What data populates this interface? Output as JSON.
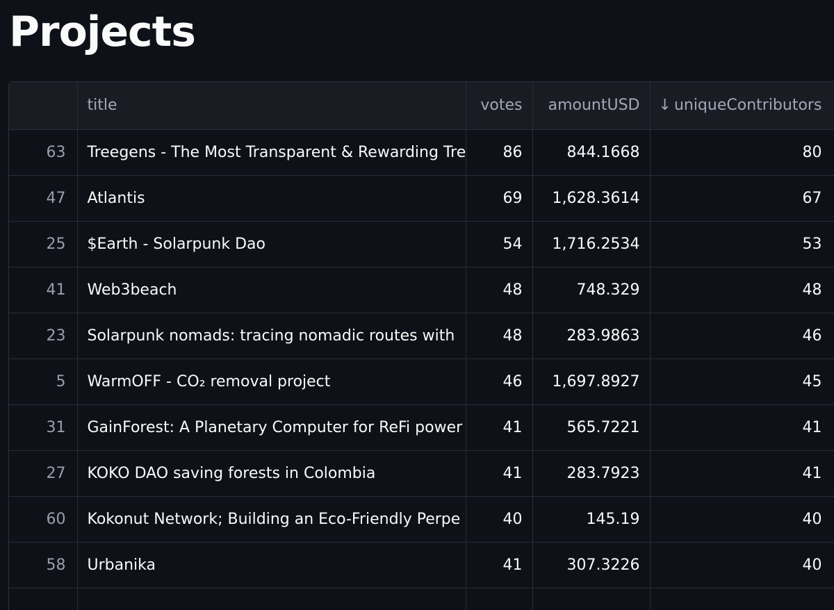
{
  "page": {
    "title": "Projects"
  },
  "table": {
    "columns": {
      "index": "",
      "title": "title",
      "votes": "votes",
      "amountUSD": "amountUSD",
      "uniqueContributors": "uniqueContributors",
      "sort_indicator": "↓"
    },
    "rows": [
      {
        "index": "63",
        "title": "Treegens - The Most Transparent & Rewarding Tree",
        "votes": "86",
        "amountUSD": "844.1668",
        "uniqueContributors": "80"
      },
      {
        "index": "47",
        "title": "Atlantis",
        "votes": "69",
        "amountUSD": "1,628.3614",
        "uniqueContributors": "67"
      },
      {
        "index": "25",
        "title": "$Earth - Solarpunk Dao",
        "votes": "54",
        "amountUSD": "1,716.2534",
        "uniqueContributors": "53"
      },
      {
        "index": "41",
        "title": "Web3beach",
        "votes": "48",
        "amountUSD": "748.329",
        "uniqueContributors": "48"
      },
      {
        "index": "23",
        "title": "Solarpunk nomads: tracing nomadic routes with",
        "votes": "48",
        "amountUSD": "283.9863",
        "uniqueContributors": "46"
      },
      {
        "index": "5",
        "title": "WarmOFF - CO₂ removal project",
        "votes": "46",
        "amountUSD": "1,697.8927",
        "uniqueContributors": "45"
      },
      {
        "index": "31",
        "title": "GainForest: A Planetary Computer for ReFi power",
        "votes": "41",
        "amountUSD": "565.7221",
        "uniqueContributors": "41"
      },
      {
        "index": "27",
        "title": "KOKO DAO saving forests in Colombia",
        "votes": "41",
        "amountUSD": "283.7923",
        "uniqueContributors": "41"
      },
      {
        "index": "60",
        "title": "Kokonut Network; Building an Eco-Friendly Perpe",
        "votes": "40",
        "amountUSD": "145.19",
        "uniqueContributors": "40"
      },
      {
        "index": "58",
        "title": "Urbanika",
        "votes": "41",
        "amountUSD": "307.3226",
        "uniqueContributors": "40"
      }
    ]
  }
}
